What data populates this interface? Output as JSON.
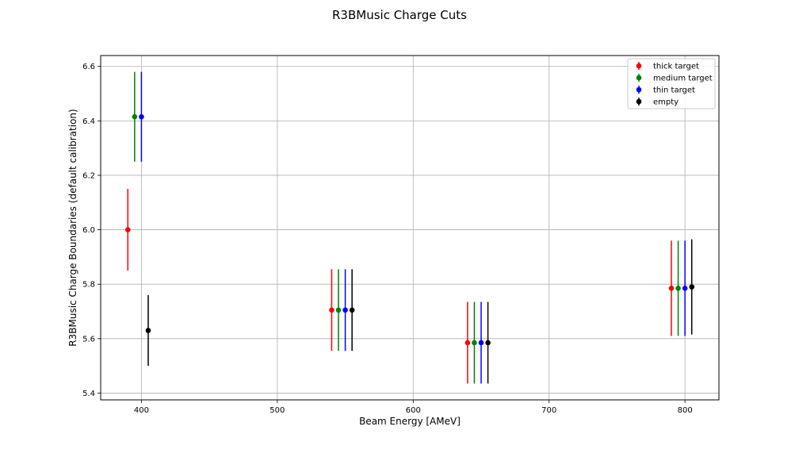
{
  "chart_data": {
    "type": "errorbar",
    "title": "R3BMusic Charge Cuts",
    "xlabel": "Beam Energy [AMeV]",
    "ylabel": "R3BMusic Charge Boundaries (default calibration)",
    "xlim": [
      370,
      825
    ],
    "ylim": [
      5.375,
      6.64
    ],
    "xticks": [
      400,
      500,
      600,
      700,
      800
    ],
    "yticks": [
      5.4,
      5.6,
      5.8,
      6.0,
      6.2,
      6.4,
      6.6
    ],
    "ytick_labels": [
      "5.4",
      "5.6",
      "5.8",
      "6.0",
      "6.2",
      "6.4",
      "6.6"
    ],
    "grid": true,
    "legend_position": "top-right",
    "series": [
      {
        "name": "thick target",
        "color": "#ff0000",
        "x": [
          390,
          540,
          640,
          790
        ],
        "y": [
          6.0,
          5.705,
          5.585,
          5.785
        ],
        "yerr": [
          0.15,
          0.15,
          0.15,
          0.175
        ]
      },
      {
        "name": "medium target",
        "color": "#008000",
        "x": [
          395,
          545,
          645,
          795
        ],
        "y": [
          6.415,
          5.705,
          5.585,
          5.785
        ],
        "yerr": [
          0.165,
          0.15,
          0.15,
          0.175
        ]
      },
      {
        "name": "thin target",
        "color": "#0000ff",
        "x": [
          400,
          550,
          650,
          800
        ],
        "y": [
          6.415,
          5.705,
          5.585,
          5.785
        ],
        "yerr": [
          0.165,
          0.15,
          0.15,
          0.175
        ]
      },
      {
        "name": "empty",
        "color": "#000000",
        "x": [
          405,
          555,
          655,
          805
        ],
        "y": [
          5.63,
          5.705,
          5.585,
          5.79
        ],
        "yerr": [
          0.13,
          0.15,
          0.15,
          0.175
        ]
      }
    ]
  }
}
